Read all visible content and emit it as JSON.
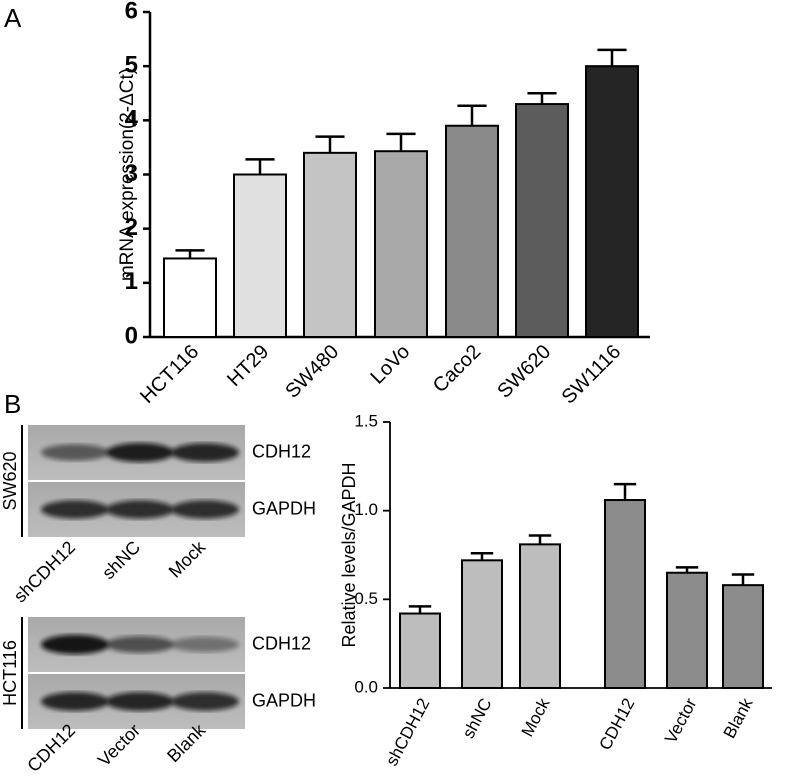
{
  "panel_labels": [
    "A",
    "B"
  ],
  "chart_data": [
    {
      "type": "bar",
      "ylabel": "mRNA expression(2-ΔCt)",
      "categories": [
        "HCT116",
        "HT29",
        "SW480",
        "LoVo",
        "Caco2",
        "SW620",
        "SW1116"
      ],
      "values": [
        1.45,
        3.0,
        3.4,
        3.43,
        3.9,
        4.3,
        5.0
      ],
      "errors": [
        0.15,
        0.28,
        0.3,
        0.32,
        0.37,
        0.2,
        0.3
      ],
      "colors": [
        "#ffffff",
        "#e0e0e0",
        "#c4c4c4",
        "#a8a8a8",
        "#8a8a8a",
        "#5c5c5c",
        "#252525"
      ],
      "ylim": [
        0,
        6
      ],
      "yticks": [
        0,
        1,
        2,
        3,
        4,
        5,
        6
      ]
    },
    {
      "type": "bar",
      "ylabel": "Relative levels/GAPDH",
      "categories": [
        "shCDH12",
        "shNC",
        "Mock",
        "CDH12",
        "Vector",
        "Blank"
      ],
      "values": [
        0.42,
        0.72,
        0.81,
        1.06,
        0.65,
        0.58
      ],
      "errors": [
        0.04,
        0.04,
        0.05,
        0.09,
        0.03,
        0.06
      ],
      "colors": [
        "#bdbdbd",
        "#bdbdbd",
        "#bdbdbd",
        "#8c8c8c",
        "#8c8c8c",
        "#8c8c8c"
      ],
      "ylim": [
        0,
        1.5
      ],
      "yticks": [
        {
          "value": 0,
          "label": "0.0"
        },
        0.5,
        {
          "value": 1,
          "label": "1.0"
        },
        1.5
      ]
    }
  ],
  "blots": [
    {
      "cell_line": "SW620",
      "bands": [
        "CDH12",
        "GAPDH"
      ],
      "lanes": [
        "shCDH12",
        "shNC",
        "Mock"
      ]
    },
    {
      "cell_line": "HCT116",
      "bands": [
        "CDH12",
        "GAPDH"
      ],
      "lanes": [
        "CDH12",
        "Vector",
        "Blank"
      ]
    }
  ]
}
